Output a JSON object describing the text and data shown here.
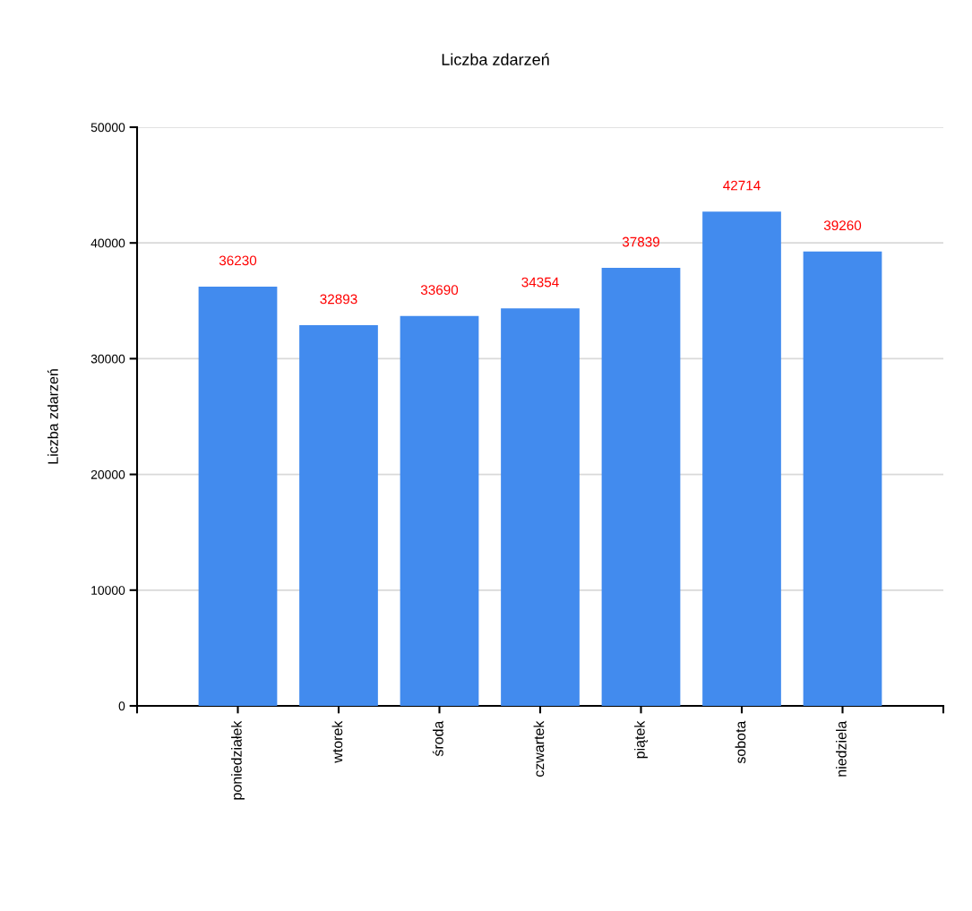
{
  "chart_data": {
    "type": "bar",
    "title": "Liczba zdarzeń",
    "ylabel": "Liczba zdarzeń",
    "categories": [
      "poniedziałek",
      "wtorek",
      "środa",
      "czwartek",
      "piątek",
      "sobota",
      "niedziela"
    ],
    "values": [
      36230,
      32893,
      33690,
      34354,
      37839,
      42714,
      39260
    ],
    "color": "#428bee",
    "ylim": [
      0,
      50000
    ],
    "yticks": [
      0,
      10000,
      20000,
      30000,
      40000,
      50000
    ],
    "grid": "y",
    "data_labels": true
  }
}
